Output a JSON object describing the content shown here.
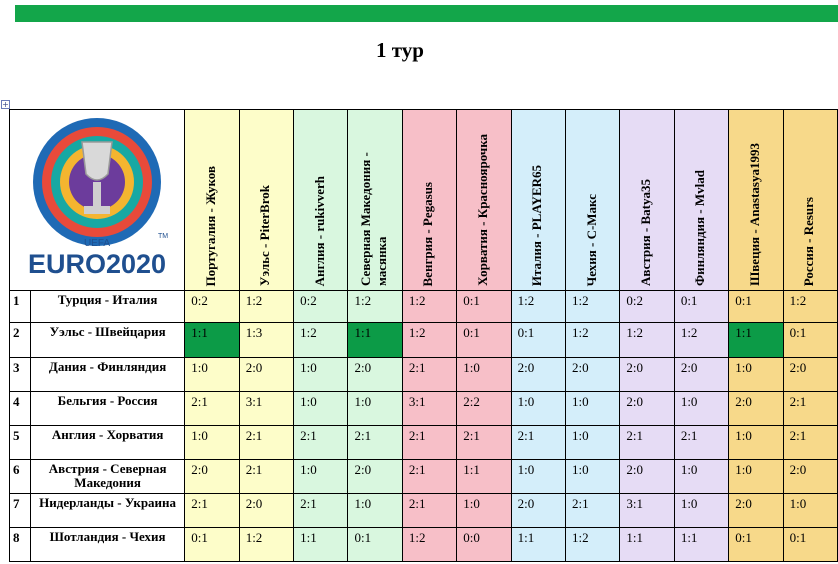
{
  "title": "1 тур",
  "logo": {
    "uefa": "UEFA",
    "wordmark": "EURO2020",
    "tm": "TM"
  },
  "players": [
    {
      "label": "Португалия - Жуков",
      "color": "c-y"
    },
    {
      "label": "Уэльс - PiterBrok",
      "color": "c-y"
    },
    {
      "label": "Англия - rukivverh",
      "color": "c-g"
    },
    {
      "label": "Северная Македония - масянка",
      "color": "c-g"
    },
    {
      "label": "Венгрия - Pegasus",
      "color": "c-r"
    },
    {
      "label": "Хорватия - Красноярочка",
      "color": "c-r"
    },
    {
      "label": "Италия - PLAYER65",
      "color": "c-b"
    },
    {
      "label": "Чехия - С-Макс",
      "color": "c-b"
    },
    {
      "label": "Австрия - Batya35",
      "color": "c-p"
    },
    {
      "label": "Финляндия - Mvlad",
      "color": "c-p"
    },
    {
      "label": "Швеция - Anastasya1993",
      "color": "c-o"
    },
    {
      "label": "Россия - Resurs",
      "color": "c-o"
    }
  ],
  "rows": [
    {
      "num": "1",
      "match": "Турция - Италия",
      "scores": [
        "0:2",
        "1:2",
        "0:2",
        "1:2",
        "1:2",
        "0:1",
        "1:2",
        "1:2",
        "0:2",
        "0:1",
        "0:1",
        "1:2"
      ]
    },
    {
      "num": "2",
      "match": "Уэльс - Швейцария",
      "scores": [
        "1:1",
        "1:3",
        "1:2",
        "1:1",
        "1:2",
        "0:1",
        "0:1",
        "1:2",
        "1:2",
        "1:2",
        "1:1",
        "0:1"
      ]
    },
    {
      "num": "3",
      "match": "Дания - Финляндия",
      "scores": [
        "1:0",
        "2:0",
        "1:0",
        "2:0",
        "2:1",
        "1:0",
        "2:0",
        "2:0",
        "2:0",
        "2:0",
        "1:0",
        "2:0"
      ]
    },
    {
      "num": "4",
      "match": "Бельгия  - Россия",
      "scores": [
        "2:1",
        "3:1",
        "1:0",
        "1:0",
        "3:1",
        "2:2",
        "1:0",
        "1:0",
        "2:0",
        "1:0",
        "2:0",
        "2:1"
      ]
    },
    {
      "num": "5",
      "match": "Англия - Хорватия",
      "scores": [
        "1:0",
        "2:1",
        "2:1",
        "2:1",
        "2:1",
        "2:1",
        "2:1",
        "1:0",
        "2:1",
        "2:1",
        "1:0",
        "2:1"
      ]
    },
    {
      "num": "6",
      "match": "Австрия - Северная Македония",
      "scores": [
        "2:0",
        "2:1",
        "1:0",
        "2:0",
        "2:1",
        "1:1",
        "1:0",
        "1:0",
        "2:0",
        "1:0",
        "1:0",
        "2:0"
      ]
    },
    {
      "num": "7",
      "match": "Нидерланды - Украина",
      "scores": [
        "2:1",
        "2:0",
        "2:1",
        "1:0",
        "2:1",
        "1:0",
        "2:0",
        "2:1",
        "3:1",
        "1:0",
        "2:0",
        "1:0"
      ]
    },
    {
      "num": "8",
      "match": "Шотландия - Чехия",
      "scores": [
        "0:1",
        "1:2",
        "1:1",
        "0:1",
        "1:2",
        "0:0",
        "1:1",
        "1:2",
        "1:1",
        "1:1",
        "0:1",
        "0:1"
      ]
    }
  ],
  "highlighted": [
    [
      1,
      0
    ],
    [
      1,
      3
    ],
    [
      1,
      10
    ]
  ],
  "colors": {
    "top_bar": "#13a64a",
    "highlight": "#0c9b47"
  }
}
